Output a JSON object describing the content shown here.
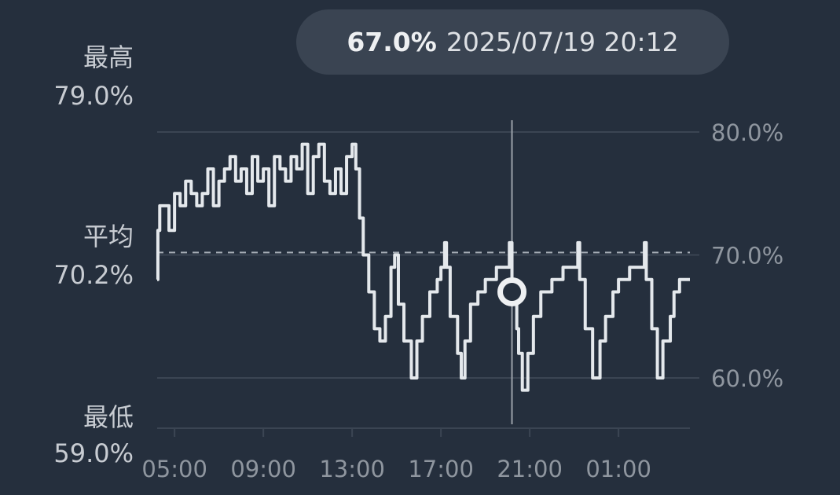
{
  "tooltip": {
    "value": "67.0%",
    "datetime": "2025/07/19 20:12"
  },
  "stats": {
    "max_label": "最高",
    "max_value": "79.0%",
    "avg_label": "平均",
    "avg_value": "70.2%",
    "min_label": "最低",
    "min_value": "59.0%"
  },
  "colors": {
    "background": "#252f3d",
    "line": "#e4e8ec",
    "grid": "#3b4553",
    "average_line": "#a9b0b8",
    "crosshair": "#9aa1a9"
  },
  "chart_data": {
    "type": "line",
    "step": true,
    "ylim": [
      56,
      81
    ],
    "yticks": [
      80,
      70,
      60
    ],
    "ytick_labels": [
      "80.0%",
      "70.0%",
      "60.0%"
    ],
    "xticks": [
      "05:00",
      "09:00",
      "13:00",
      "17:00",
      "21:00",
      "01:00"
    ],
    "x_range": [
      "2025-07-19T04:13",
      "2025-07-20T04:13"
    ],
    "average": 70.2,
    "selected": {
      "x": "2025-07-19T20:12",
      "y": 67.0
    },
    "points": [
      [
        "2025-07-19T04:13",
        68
      ],
      [
        "2025-07-19T04:15",
        72
      ],
      [
        "2025-07-19T04:20",
        74
      ],
      [
        "2025-07-19T04:45",
        72
      ],
      [
        "2025-07-19T05:00",
        75
      ],
      [
        "2025-07-19T05:15",
        74
      ],
      [
        "2025-07-19T05:30",
        76
      ],
      [
        "2025-07-19T05:45",
        75
      ],
      [
        "2025-07-19T06:00",
        74
      ],
      [
        "2025-07-19T06:15",
        75
      ],
      [
        "2025-07-19T06:30",
        77
      ],
      [
        "2025-07-19T06:45",
        74
      ],
      [
        "2025-07-19T07:00",
        76
      ],
      [
        "2025-07-19T07:15",
        77
      ],
      [
        "2025-07-19T07:30",
        78
      ],
      [
        "2025-07-19T07:45",
        76
      ],
      [
        "2025-07-19T08:00",
        77
      ],
      [
        "2025-07-19T08:15",
        75
      ],
      [
        "2025-07-19T08:30",
        78
      ],
      [
        "2025-07-19T08:45",
        76
      ],
      [
        "2025-07-19T09:00",
        77
      ],
      [
        "2025-07-19T09:15",
        74
      ],
      [
        "2025-07-19T09:30",
        78
      ],
      [
        "2025-07-19T09:45",
        77
      ],
      [
        "2025-07-19T10:00",
        76
      ],
      [
        "2025-07-19T10:15",
        78
      ],
      [
        "2025-07-19T10:30",
        77
      ],
      [
        "2025-07-19T10:45",
        79
      ],
      [
        "2025-07-19T11:00",
        75
      ],
      [
        "2025-07-19T11:15",
        78
      ],
      [
        "2025-07-19T11:30",
        79
      ],
      [
        "2025-07-19T11:45",
        76
      ],
      [
        "2025-07-19T12:00",
        75
      ],
      [
        "2025-07-19T12:15",
        77
      ],
      [
        "2025-07-19T12:30",
        75
      ],
      [
        "2025-07-19T12:45",
        78
      ],
      [
        "2025-07-19T13:00",
        79
      ],
      [
        "2025-07-19T13:10",
        77
      ],
      [
        "2025-07-19T13:20",
        73
      ],
      [
        "2025-07-19T13:30",
        70
      ],
      [
        "2025-07-19T13:45",
        67
      ],
      [
        "2025-07-19T14:00",
        64
      ],
      [
        "2025-07-19T14:15",
        63
      ],
      [
        "2025-07-19T14:30",
        65
      ],
      [
        "2025-07-19T14:45",
        69
      ],
      [
        "2025-07-19T14:55",
        70
      ],
      [
        "2025-07-19T15:05",
        66
      ],
      [
        "2025-07-19T15:20",
        63
      ],
      [
        "2025-07-19T15:40",
        60
      ],
      [
        "2025-07-19T15:55",
        63
      ],
      [
        "2025-07-19T16:10",
        65
      ],
      [
        "2025-07-19T16:30",
        67
      ],
      [
        "2025-07-19T16:50",
        68
      ],
      [
        "2025-07-19T17:00",
        69
      ],
      [
        "2025-07-19T17:10",
        71
      ],
      [
        "2025-07-19T17:15",
        69
      ],
      [
        "2025-07-19T17:25",
        65
      ],
      [
        "2025-07-19T17:45",
        62
      ],
      [
        "2025-07-19T17:55",
        60
      ],
      [
        "2025-07-19T18:05",
        63
      ],
      [
        "2025-07-19T18:20",
        66
      ],
      [
        "2025-07-19T18:40",
        67
      ],
      [
        "2025-07-19T19:00",
        68
      ],
      [
        "2025-07-19T19:30",
        69
      ],
      [
        "2025-07-19T20:05",
        71
      ],
      [
        "2025-07-19T20:12",
        67
      ],
      [
        "2025-07-19T20:25",
        64
      ],
      [
        "2025-07-19T20:30",
        62
      ],
      [
        "2025-07-19T20:40",
        59
      ],
      [
        "2025-07-19T20:55",
        62
      ],
      [
        "2025-07-19T21:10",
        65
      ],
      [
        "2025-07-19T21:30",
        67
      ],
      [
        "2025-07-19T22:00",
        68
      ],
      [
        "2025-07-19T22:30",
        69
      ],
      [
        "2025-07-19T23:10",
        71
      ],
      [
        "2025-07-19T23:15",
        68
      ],
      [
        "2025-07-19T23:30",
        64
      ],
      [
        "2025-07-19T23:50",
        60
      ],
      [
        "2025-07-20T00:10",
        63
      ],
      [
        "2025-07-20T00:25",
        65
      ],
      [
        "2025-07-20T00:45",
        67
      ],
      [
        "2025-07-20T01:00",
        68
      ],
      [
        "2025-07-20T01:30",
        69
      ],
      [
        "2025-07-20T02:10",
        71
      ],
      [
        "2025-07-20T02:15",
        68
      ],
      [
        "2025-07-20T02:30",
        64
      ],
      [
        "2025-07-20T02:45",
        60
      ],
      [
        "2025-07-20T03:00",
        63
      ],
      [
        "2025-07-20T03:20",
        65
      ],
      [
        "2025-07-20T03:30",
        67
      ],
      [
        "2025-07-20T03:45",
        68
      ],
      [
        "2025-07-20T04:13",
        68
      ]
    ]
  }
}
